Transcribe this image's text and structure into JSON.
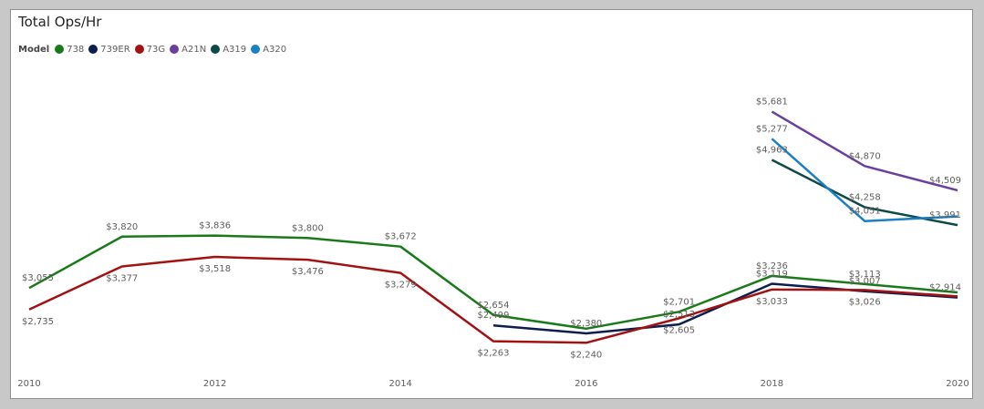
{
  "chart_data": {
    "type": "line",
    "title": "Total Ops/Hr",
    "legend_title": "Model",
    "legend_position": "top-left",
    "grid": false,
    "x_ticks": [
      2010,
      2012,
      2014,
      2016,
      2018,
      2020
    ],
    "xlim": [
      2010,
      2020
    ],
    "ylim": [
      2000,
      6000
    ],
    "series": [
      {
        "name": "738",
        "color": "#1a7a1a",
        "points": [
          [
            2010,
            3055
          ],
          [
            2011,
            3820
          ],
          [
            2012,
            3836
          ],
          [
            2013,
            3800
          ],
          [
            2014,
            3672
          ],
          [
            2015,
            2654
          ],
          [
            2016,
            2450
          ],
          [
            2017,
            2701
          ],
          [
            2018,
            3236
          ],
          [
            2019,
            3113
          ],
          [
            2020,
            2990
          ]
        ],
        "labels": [
          "$3,055",
          "$3,820",
          "$3,836",
          "$3,800",
          "$3,672",
          "$2,654",
          null,
          "$2,701",
          "$3,236",
          "$3,113",
          null
        ]
      },
      {
        "name": "739ER",
        "color": "#0e1d4f",
        "points": [
          [
            2015,
            2499
          ],
          [
            2016,
            2380
          ],
          [
            2017,
            2513
          ],
          [
            2018,
            3119
          ],
          [
            2019,
            3007
          ],
          [
            2020,
            2914
          ]
        ],
        "labels": [
          "$2,499",
          "$2,380",
          "$2,513",
          "$3,119",
          "$3,007",
          "$2,914"
        ]
      },
      {
        "name": "73G",
        "color": "#a31212",
        "points": [
          [
            2010,
            2735
          ],
          [
            2011,
            3377
          ],
          [
            2012,
            3518
          ],
          [
            2013,
            3476
          ],
          [
            2014,
            3279
          ],
          [
            2015,
            2263
          ],
          [
            2016,
            2240
          ],
          [
            2017,
            2605
          ],
          [
            2018,
            3033
          ],
          [
            2019,
            3026
          ],
          [
            2020,
            2930
          ]
        ],
        "labels": [
          "$2,735",
          "$3,377",
          "$3,518",
          "$3,476",
          "$3,279",
          "$2,263",
          "$2,240",
          "$2,605",
          "$3,033",
          "$3,026",
          null
        ]
      },
      {
        "name": "A21N",
        "color": "#6b3fa0",
        "points": [
          [
            2018,
            5681
          ],
          [
            2019,
            4870
          ],
          [
            2020,
            4509
          ]
        ],
        "labels": [
          "$5,681",
          "$4,870",
          "$4,509"
        ]
      },
      {
        "name": "A319",
        "color": "#0c4a4a",
        "points": [
          [
            2018,
            4963
          ],
          [
            2019,
            4258
          ],
          [
            2020,
            3991
          ]
        ],
        "labels": [
          "$4,963",
          "$4,258",
          "$3,991"
        ]
      },
      {
        "name": "A320",
        "color": "#1a7fc4",
        "points": [
          [
            2018,
            5277
          ],
          [
            2019,
            4051
          ],
          [
            2020,
            4120
          ]
        ],
        "labels": [
          "$5,277",
          "$4,051",
          null
        ]
      }
    ]
  }
}
